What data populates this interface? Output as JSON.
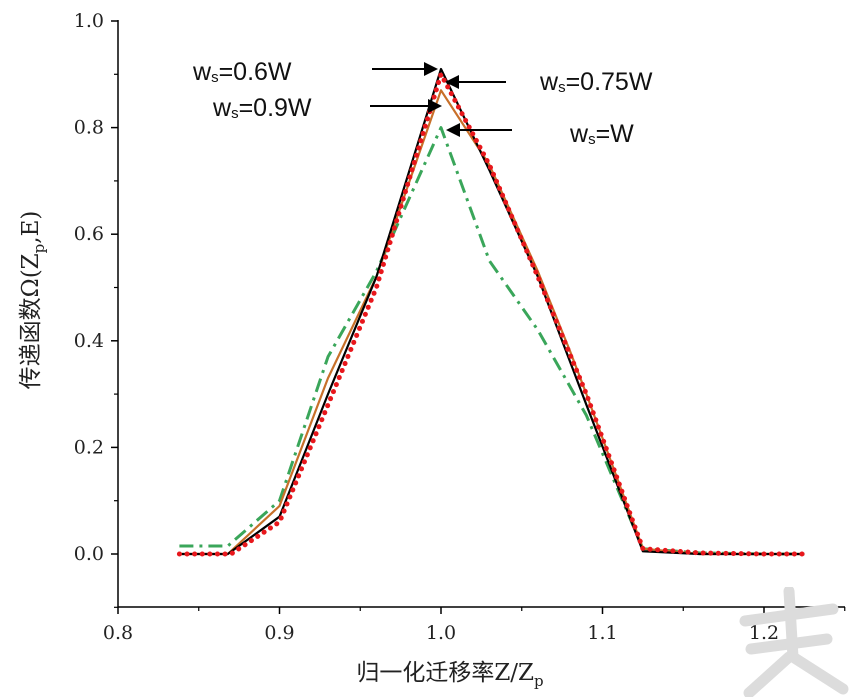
{
  "chart_data": {
    "type": "line",
    "title": "",
    "xlabel": "归一化迁移率Z/Z",
    "xlabel_sub": "p",
    "ylabel": "传递函数Ω(Z",
    "ylabel_sub": "p",
    "ylabel_tail": ",E)",
    "xlim": [
      0.8,
      1.25
    ],
    "ylim": [
      -0.1,
      1.0
    ],
    "xticks": [
      0.8,
      0.9,
      1.0,
      1.1,
      1.2
    ],
    "xtick_labels": [
      "0.8",
      "0.9",
      "1.0",
      "1.1",
      "1.2"
    ],
    "yticks": [
      0.0,
      0.2,
      0.4,
      0.6,
      0.8,
      1.0
    ],
    "ytick_labels": [
      "0.0",
      "0.2",
      "0.4",
      "0.6",
      "0.8",
      "1.0"
    ],
    "grid": false,
    "legend": "none",
    "series": [
      {
        "name": "ws=0.6W",
        "color": "#000000",
        "style": "solid",
        "x": [
          0.838,
          0.868,
          0.9,
          0.93,
          0.96,
          1.0,
          1.03,
          1.06,
          1.09,
          1.125,
          1.16,
          1.2,
          1.225
        ],
        "y": [
          0.0,
          0.0,
          0.07,
          0.3,
          0.52,
          0.91,
          0.72,
          0.52,
          0.28,
          0.005,
          0.0,
          0.0,
          0.0
        ]
      },
      {
        "name": "ws=0.75W",
        "color": "#e8171c",
        "style": "dotted",
        "x": [
          0.838,
          0.87,
          0.9,
          0.93,
          0.96,
          1.0,
          1.03,
          1.06,
          1.09,
          1.125,
          1.16,
          1.2,
          1.225
        ],
        "y": [
          0.0,
          0.0,
          0.06,
          0.28,
          0.5,
          0.9,
          0.73,
          0.52,
          0.3,
          0.01,
          0.002,
          0.0,
          0.0
        ]
      },
      {
        "name": "ws=0.9W",
        "color": "#c8702a",
        "style": "solid",
        "x": [
          0.838,
          0.868,
          0.9,
          0.93,
          0.96,
          1.0,
          1.03,
          1.06,
          1.08,
          1.09,
          1.125,
          1.16,
          1.2,
          1.225
        ],
        "y": [
          0.0,
          0.0,
          0.09,
          0.33,
          0.52,
          0.87,
          0.73,
          0.53,
          0.38,
          0.3,
          0.01,
          0.0,
          0.0,
          0.0
        ]
      },
      {
        "name": "ws=W",
        "color": "#3aa65a",
        "style": "dashdot",
        "x": [
          0.838,
          0.868,
          0.9,
          0.93,
          0.96,
          1.0,
          1.03,
          1.06,
          1.09,
          1.125,
          1.16,
          1.2,
          1.225
        ],
        "y": [
          0.015,
          0.015,
          0.1,
          0.37,
          0.53,
          0.8,
          0.55,
          0.42,
          0.26,
          0.01,
          0.002,
          0.0,
          0.0
        ]
      }
    ],
    "annotations": [
      {
        "label_main": "w",
        "label_sub": "s",
        "label_tail": "=0.6W",
        "arrow": "right"
      },
      {
        "label_main": "w",
        "label_sub": "s",
        "label_tail": "=0.75W",
        "arrow": "left"
      },
      {
        "label_main": "w",
        "label_sub": "s",
        "label_tail": "=0.9W",
        "arrow": "right"
      },
      {
        "label_main": "w",
        "label_sub": "s",
        "label_tail": "=W",
        "arrow": "left"
      }
    ],
    "watermark_color": "#dcdcdc"
  }
}
